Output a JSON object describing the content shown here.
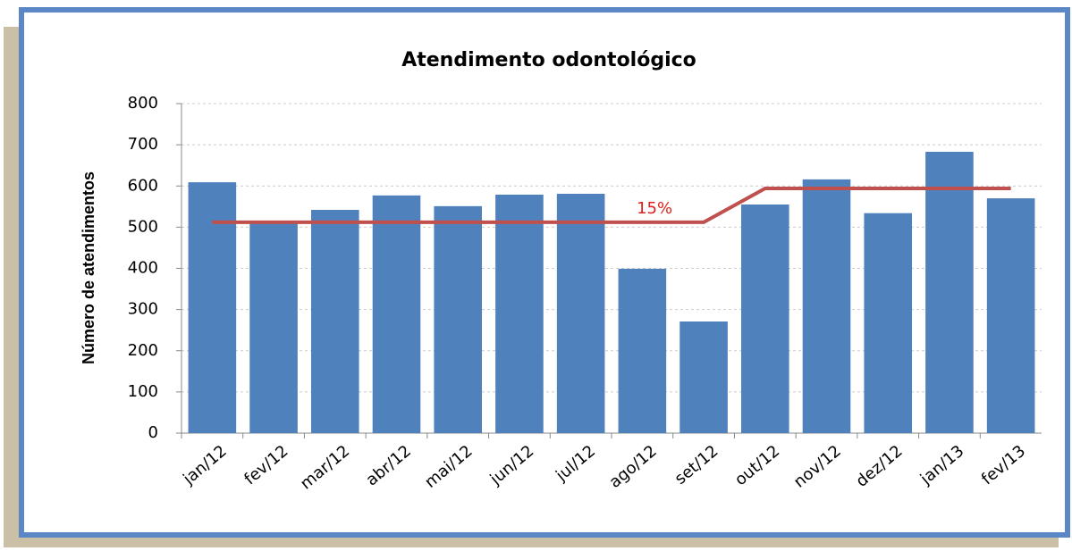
{
  "chart_data": {
    "type": "bar",
    "title": "Atendimento odontológico",
    "y_label": "Número de atendimentos",
    "categories": [
      "jan/12",
      "fev/12",
      "mar/12",
      "abr/12",
      "mai/12",
      "jun/12",
      "jul/12",
      "ago/12",
      "set/12",
      "out/12",
      "nov/12",
      "dez/12",
      "jan/13",
      "fev/13"
    ],
    "series": [
      {
        "type": "bar",
        "color": "#4f81bd",
        "values": [
          609,
          510,
          542,
          577,
          551,
          579,
          581,
          399,
          271,
          555,
          616,
          534,
          683,
          570
        ]
      },
      {
        "type": "line",
        "color": "#c0504d",
        "values": [
          512,
          512,
          512,
          512,
          512,
          512,
          512,
          512,
          512,
          594,
          594,
          594,
          594,
          594
        ]
      }
    ],
    "annotation": "15%",
    "ylim": [
      0,
      800
    ],
    "yticks": [
      0,
      100,
      200,
      300,
      400,
      500,
      600,
      700,
      800
    ],
    "grid": true
  }
}
